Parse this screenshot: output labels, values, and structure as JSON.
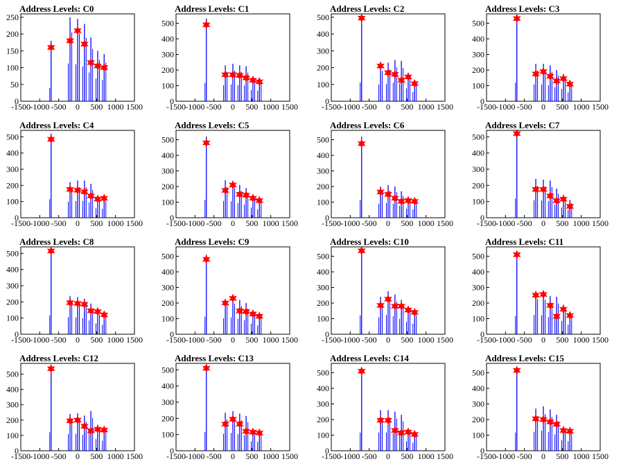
{
  "figure": {
    "background": "#ffffff",
    "spike_color": "#0000ff",
    "marker_color": "#ff0000"
  },
  "chart_data": [
    {
      "type": "histogram",
      "title": "Address Levels: C0",
      "xlim": [
        -1500,
        1500
      ],
      "ylim": [
        0,
        260
      ],
      "xticks": [
        -1500,
        -1000,
        -500,
        0,
        500,
        1000,
        1500
      ],
      "yticks": [
        0,
        50,
        100,
        150,
        200,
        250
      ],
      "peaks": [
        {
          "x": -700,
          "y": 160,
          "h": 180
        },
        {
          "x": -200,
          "y": 180,
          "h": 250
        },
        {
          "x": 0,
          "y": 210,
          "h": 245
        },
        {
          "x": 180,
          "y": 170,
          "h": 230
        },
        {
          "x": 350,
          "y": 115,
          "h": 190
        },
        {
          "x": 530,
          "y": 105,
          "h": 150
        },
        {
          "x": 700,
          "y": 100,
          "h": 140
        }
      ]
    },
    {
      "type": "histogram",
      "title": "Address Levels: C1",
      "xlim": [
        -1500,
        1500
      ],
      "ylim": [
        0,
        560
      ],
      "xticks": [
        -1500,
        -1000,
        -500,
        0,
        500,
        1000,
        1500
      ],
      "yticks": [
        0,
        100,
        200,
        300,
        400,
        500
      ],
      "peaks": [
        {
          "x": -700,
          "y": 490,
          "h": 530
        },
        {
          "x": -200,
          "y": 170,
          "h": 230
        },
        {
          "x": 0,
          "y": 170,
          "h": 240
        },
        {
          "x": 180,
          "y": 165,
          "h": 230
        },
        {
          "x": 350,
          "y": 150,
          "h": 225
        },
        {
          "x": 530,
          "y": 135,
          "h": 160
        },
        {
          "x": 700,
          "y": 125,
          "h": 150
        }
      ]
    },
    {
      "type": "histogram",
      "title": "Address Levels: C2",
      "xlim": [
        -1500,
        1500
      ],
      "ylim": [
        0,
        520
      ],
      "xticks": [
        -1500,
        -1000,
        -500,
        0,
        500,
        1000,
        1500
      ],
      "yticks": [
        0,
        100,
        200,
        300,
        400,
        500
      ],
      "peaks": [
        {
          "x": -700,
          "y": 495,
          "h": 510
        },
        {
          "x": -200,
          "y": 210,
          "h": 220
        },
        {
          "x": 0,
          "y": 170,
          "h": 230
        },
        {
          "x": 180,
          "y": 160,
          "h": 245
        },
        {
          "x": 350,
          "y": 125,
          "h": 240
        },
        {
          "x": 530,
          "y": 145,
          "h": 170
        },
        {
          "x": 700,
          "y": 105,
          "h": 120
        }
      ]
    },
    {
      "type": "histogram",
      "title": "Address Levels: C3",
      "xlim": [
        -1500,
        1500
      ],
      "ylim": [
        0,
        560
      ],
      "xticks": [
        -1500,
        -1000,
        -500,
        0,
        500,
        1000,
        1500
      ],
      "yticks": [
        0,
        100,
        200,
        300,
        400,
        500
      ],
      "peaks": [
        {
          "x": -700,
          "y": 530,
          "h": 545
        },
        {
          "x": -200,
          "y": 175,
          "h": 240
        },
        {
          "x": 0,
          "y": 190,
          "h": 240
        },
        {
          "x": 180,
          "y": 160,
          "h": 230
        },
        {
          "x": 350,
          "y": 130,
          "h": 200
        },
        {
          "x": 530,
          "y": 145,
          "h": 175
        },
        {
          "x": 700,
          "y": 110,
          "h": 125
        }
      ]
    },
    {
      "type": "histogram",
      "title": "Address Levels: C4",
      "xlim": [
        -1500,
        1500
      ],
      "ylim": [
        0,
        540
      ],
      "xticks": [
        -1500,
        -1000,
        -500,
        0,
        500,
        1000,
        1500
      ],
      "yticks": [
        0,
        100,
        200,
        300,
        400,
        500
      ],
      "peaks": [
        {
          "x": -700,
          "y": 485,
          "h": 520
        },
        {
          "x": -200,
          "y": 175,
          "h": 220
        },
        {
          "x": 0,
          "y": 170,
          "h": 230
        },
        {
          "x": 180,
          "y": 160,
          "h": 230
        },
        {
          "x": 350,
          "y": 135,
          "h": 210
        },
        {
          "x": 530,
          "y": 115,
          "h": 130
        },
        {
          "x": 700,
          "y": 120,
          "h": 125
        }
      ]
    },
    {
      "type": "histogram",
      "title": "Address Levels: C5",
      "xlim": [
        -1500,
        1500
      ],
      "ylim": [
        0,
        560
      ],
      "xticks": [
        -1500,
        -1000,
        -500,
        0,
        500,
        1000,
        1500
      ],
      "yticks": [
        0,
        100,
        200,
        300,
        400,
        500
      ],
      "peaks": [
        {
          "x": -700,
          "y": 480,
          "h": 520
        },
        {
          "x": -200,
          "y": 175,
          "h": 240
        },
        {
          "x": 0,
          "y": 210,
          "h": 235
        },
        {
          "x": 180,
          "y": 150,
          "h": 210
        },
        {
          "x": 350,
          "y": 145,
          "h": 190
        },
        {
          "x": 530,
          "y": 125,
          "h": 145
        },
        {
          "x": 700,
          "y": 110,
          "h": 120
        }
      ]
    },
    {
      "type": "histogram",
      "title": "Address Levels: C6",
      "xlim": [
        -1500,
        1500
      ],
      "ylim": [
        0,
        560
      ],
      "xticks": [
        -1500,
        -1000,
        -500,
        0,
        500,
        1000,
        1500
      ],
      "yticks": [
        0,
        100,
        200,
        300,
        400,
        500
      ],
      "peaks": [
        {
          "x": -700,
          "y": 475,
          "h": 520
        },
        {
          "x": -200,
          "y": 165,
          "h": 200
        },
        {
          "x": 0,
          "y": 150,
          "h": 210
        },
        {
          "x": 180,
          "y": 125,
          "h": 200
        },
        {
          "x": 350,
          "y": 105,
          "h": 170
        },
        {
          "x": 530,
          "y": 110,
          "h": 130
        },
        {
          "x": 700,
          "y": 105,
          "h": 120
        }
      ]
    },
    {
      "type": "histogram",
      "title": "Address Levels: C7",
      "xlim": [
        -1500,
        1500
      ],
      "ylim": [
        0,
        540
      ],
      "xticks": [
        -1500,
        -1000,
        -500,
        0,
        500,
        1000,
        1500
      ],
      "yticks": [
        0,
        100,
        200,
        300,
        400,
        500
      ],
      "peaks": [
        {
          "x": -700,
          "y": 520,
          "h": 540
        },
        {
          "x": -200,
          "y": 175,
          "h": 240
        },
        {
          "x": 0,
          "y": 175,
          "h": 235
        },
        {
          "x": 180,
          "y": 135,
          "h": 230
        },
        {
          "x": 350,
          "y": 105,
          "h": 180
        },
        {
          "x": 530,
          "y": 115,
          "h": 140
        },
        {
          "x": 700,
          "y": 70,
          "h": 110
        }
      ]
    },
    {
      "type": "histogram",
      "title": "Address Levels: C8",
      "xlim": [
        -1500,
        1500
      ],
      "ylim": [
        0,
        540
      ],
      "xticks": [
        -1500,
        -1000,
        -500,
        0,
        500,
        1000,
        1500
      ],
      "yticks": [
        0,
        100,
        200,
        300,
        400,
        500
      ],
      "peaks": [
        {
          "x": -700,
          "y": 515,
          "h": 530
        },
        {
          "x": -200,
          "y": 195,
          "h": 235
        },
        {
          "x": 0,
          "y": 190,
          "h": 230
        },
        {
          "x": 180,
          "y": 185,
          "h": 220
        },
        {
          "x": 350,
          "y": 145,
          "h": 190
        },
        {
          "x": 530,
          "y": 140,
          "h": 150
        },
        {
          "x": 700,
          "y": 120,
          "h": 130
        }
      ]
    },
    {
      "type": "histogram",
      "title": "Address Levels: C9",
      "xlim": [
        -1500,
        1500
      ],
      "ylim": [
        0,
        560
      ],
      "xticks": [
        -1500,
        -1000,
        -500,
        0,
        500,
        1000,
        1500
      ],
      "yticks": [
        0,
        100,
        200,
        300,
        400,
        500
      ],
      "peaks": [
        {
          "x": -700,
          "y": 480,
          "h": 510
        },
        {
          "x": -200,
          "y": 200,
          "h": 225
        },
        {
          "x": 0,
          "y": 230,
          "h": 240
        },
        {
          "x": 180,
          "y": 150,
          "h": 220
        },
        {
          "x": 350,
          "y": 145,
          "h": 200
        },
        {
          "x": 530,
          "y": 130,
          "h": 150
        },
        {
          "x": 700,
          "y": 115,
          "h": 125
        }
      ]
    },
    {
      "type": "histogram",
      "title": "Address Levels: C10",
      "xlim": [
        -1500,
        1500
      ],
      "ylim": [
        0,
        560
      ],
      "xticks": [
        -1500,
        -1000,
        -500,
        0,
        500,
        1000,
        1500
      ],
      "yticks": [
        0,
        100,
        200,
        300,
        400,
        500
      ],
      "peaks": [
        {
          "x": -700,
          "y": 535,
          "h": 550
        },
        {
          "x": -200,
          "y": 185,
          "h": 240
        },
        {
          "x": 0,
          "y": 225,
          "h": 275
        },
        {
          "x": 180,
          "y": 180,
          "h": 255
        },
        {
          "x": 350,
          "y": 180,
          "h": 220
        },
        {
          "x": 530,
          "y": 155,
          "h": 180
        },
        {
          "x": 700,
          "y": 140,
          "h": 150
        }
      ]
    },
    {
      "type": "histogram",
      "title": "Address Levels: C11",
      "xlim": [
        -1500,
        1500
      ],
      "ylim": [
        0,
        560
      ],
      "xticks": [
        -1500,
        -1000,
        -500,
        0,
        500,
        1000,
        1500
      ],
      "yticks": [
        0,
        100,
        200,
        300,
        400,
        500
      ],
      "peaks": [
        {
          "x": -700,
          "y": 510,
          "h": 530
        },
        {
          "x": -200,
          "y": 250,
          "h": 275
        },
        {
          "x": 0,
          "y": 255,
          "h": 270
        },
        {
          "x": 180,
          "y": 185,
          "h": 245
        },
        {
          "x": 350,
          "y": 115,
          "h": 240
        },
        {
          "x": 530,
          "y": 160,
          "h": 190
        },
        {
          "x": 700,
          "y": 120,
          "h": 135
        }
      ]
    },
    {
      "type": "histogram",
      "title": "Address Levels: C12",
      "xlim": [
        -1500,
        1500
      ],
      "ylim": [
        0,
        570
      ],
      "xticks": [
        -1500,
        -1000,
        -500,
        0,
        500,
        1000,
        1500
      ],
      "yticks": [
        0,
        100,
        200,
        300,
        400,
        500
      ],
      "peaks": [
        {
          "x": -700,
          "y": 535,
          "h": 550
        },
        {
          "x": -200,
          "y": 195,
          "h": 240
        },
        {
          "x": 0,
          "y": 200,
          "h": 245
        },
        {
          "x": 180,
          "y": 160,
          "h": 230
        },
        {
          "x": 350,
          "y": 130,
          "h": 260
        },
        {
          "x": 530,
          "y": 140,
          "h": 170
        },
        {
          "x": 700,
          "y": 135,
          "h": 145
        }
      ]
    },
    {
      "type": "histogram",
      "title": "Address Levels: C13",
      "xlim": [
        -1500,
        1500
      ],
      "ylim": [
        0,
        540
      ],
      "xticks": [
        -1500,
        -1000,
        -500,
        0,
        500,
        1000,
        1500
      ],
      "yticks": [
        0,
        100,
        200,
        300,
        400,
        500
      ],
      "peaks": [
        {
          "x": -700,
          "y": 510,
          "h": 530
        },
        {
          "x": -200,
          "y": 165,
          "h": 235
        },
        {
          "x": 0,
          "y": 195,
          "h": 245
        },
        {
          "x": 180,
          "y": 165,
          "h": 230
        },
        {
          "x": 350,
          "y": 120,
          "h": 215
        },
        {
          "x": 530,
          "y": 115,
          "h": 130
        },
        {
          "x": 700,
          "y": 110,
          "h": 125
        }
      ]
    },
    {
      "type": "histogram",
      "title": "Address Levels: C14",
      "xlim": [
        -1500,
        1500
      ],
      "ylim": [
        0,
        560
      ],
      "xticks": [
        -1500,
        -1000,
        -500,
        0,
        500,
        1000,
        1500
      ],
      "yticks": [
        0,
        100,
        200,
        300,
        400,
        500
      ],
      "peaks": [
        {
          "x": -700,
          "y": 510,
          "h": 530
        },
        {
          "x": -200,
          "y": 195,
          "h": 260
        },
        {
          "x": 0,
          "y": 195,
          "h": 260
        },
        {
          "x": 180,
          "y": 130,
          "h": 250
        },
        {
          "x": 350,
          "y": 115,
          "h": 230
        },
        {
          "x": 530,
          "y": 120,
          "h": 135
        },
        {
          "x": 700,
          "y": 105,
          "h": 115
        }
      ]
    },
    {
      "type": "histogram",
      "title": "Address Levels: C15",
      "xlim": [
        -1500,
        1500
      ],
      "ylim": [
        0,
        560
      ],
      "xticks": [
        -1500,
        -1000,
        -500,
        0,
        500,
        1000,
        1500
      ],
      "yticks": [
        0,
        100,
        200,
        300,
        400,
        500
      ],
      "peaks": [
        {
          "x": -700,
          "y": 515,
          "h": 530
        },
        {
          "x": -200,
          "y": 205,
          "h": 270
        },
        {
          "x": 0,
          "y": 200,
          "h": 285
        },
        {
          "x": 180,
          "y": 185,
          "h": 265
        },
        {
          "x": 350,
          "y": 170,
          "h": 230
        },
        {
          "x": 530,
          "y": 130,
          "h": 150
        },
        {
          "x": 700,
          "y": 125,
          "h": 135
        }
      ]
    }
  ]
}
